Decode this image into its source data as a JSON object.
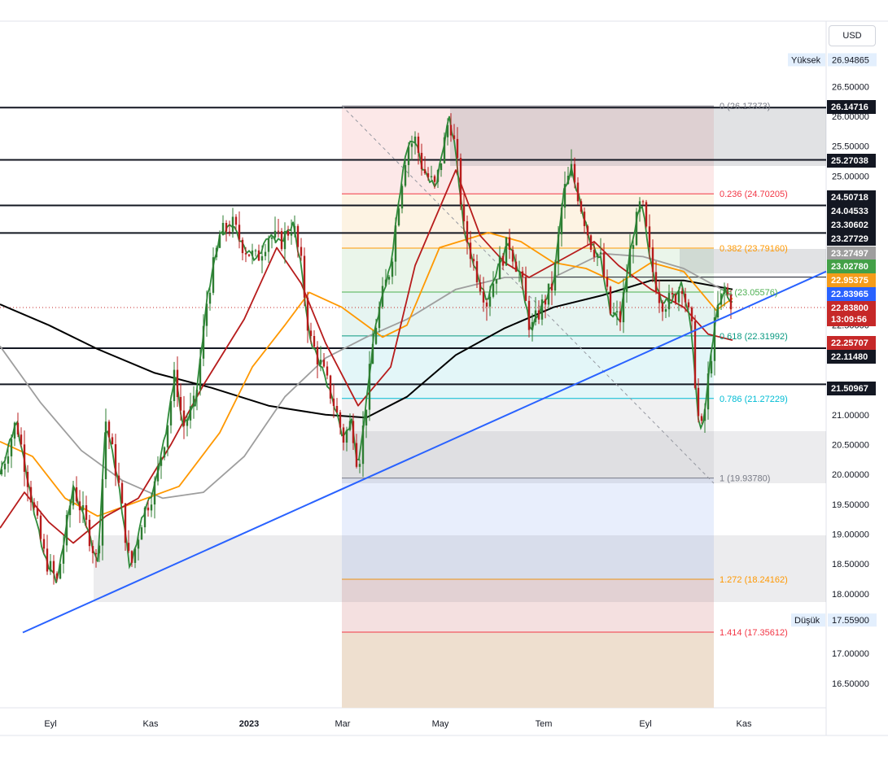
{
  "currency_button": "USD",
  "chart_data": {
    "type": "candlestick",
    "y_range": [
      16.0,
      27.1
    ],
    "y_ticks": [
      "26.50000",
      "26.00000",
      "25.50000",
      "25.00000",
      "22.50000",
      "21.00000",
      "20.50000",
      "20.00000",
      "19.50000",
      "19.00000",
      "18.50000",
      "18.00000",
      "17.00000",
      "16.50000"
    ],
    "x_labels": [
      "Eyl",
      "Kas",
      "2023",
      "Mar",
      "May",
      "Tem",
      "Eyl",
      "Kas"
    ],
    "high": {
      "label": "Yüksek",
      "value": "26.94865"
    },
    "low": {
      "label": "Düşük",
      "value": "17.55900"
    },
    "horizontal_levels": [
      {
        "value": "26.14716",
        "v": 26.147
      },
      {
        "value": "25.27038",
        "v": 25.27
      },
      {
        "value": "24.50718",
        "v": 24.507
      },
      {
        "value": "24.04533",
        "v": 24.045
      },
      {
        "value": "23.30602",
        "v": 23.306
      },
      {
        "value": "22.11480",
        "v": 22.115
      },
      {
        "value": "21.50967",
        "v": 21.51
      }
    ],
    "price_tags": [
      {
        "value": "23.27729",
        "v": 23.277,
        "color": "#131722"
      },
      {
        "value": "23.27497",
        "v": 23.275,
        "color": "#9e9e9e"
      },
      {
        "value": "23.02780",
        "v": 23.028,
        "color": "#43a047"
      },
      {
        "value": "22.95375",
        "v": 22.954,
        "color": "#f59c1a"
      },
      {
        "value": "22.83965",
        "v": 22.84,
        "color": "#2962ff"
      },
      {
        "value": "22.83800",
        "v": 22.838,
        "color": "#c62828"
      },
      {
        "value": "13:09:56",
        "v": 22.838,
        "color": "#c62828"
      },
      {
        "value": "22.25707",
        "v": 22.257,
        "color": "#c62828"
      }
    ],
    "fibonacci": [
      {
        "ratio": "0",
        "label": "0 (26.17373)",
        "v": 26.174,
        "color": "#787b86"
      },
      {
        "ratio": "0.236",
        "label": "0.236 (24.70205)",
        "v": 24.702,
        "color": "#f23645"
      },
      {
        "ratio": "0.382",
        "label": "0.382 (23.79160)",
        "v": 23.792,
        "color": "#ff9800"
      },
      {
        "ratio": "0.5",
        "label": "0.5 (23.05576)",
        "v": 23.056,
        "color": "#4caf50"
      },
      {
        "ratio": "0.618",
        "label": "0.618 (22.31992)",
        "v": 22.32,
        "color": "#089981"
      },
      {
        "ratio": "0.786",
        "label": "0.786 (21.27229)",
        "v": 21.272,
        "color": "#00bcd4"
      },
      {
        "ratio": "1",
        "label": "1 (19.93780)",
        "v": 19.938,
        "color": "#787b86"
      },
      {
        "ratio": "1.272",
        "label": "1.272 (18.24162)",
        "v": 18.242,
        "color": "#ff9800"
      },
      {
        "ratio": "1.414",
        "label": "1.414 (17.35612)",
        "v": 17.356,
        "color": "#f23645"
      }
    ],
    "moving_averages": [
      {
        "color": "#000000",
        "points": [
          [
            0,
            22.85
          ],
          [
            60,
            22.5
          ],
          [
            120,
            22.1
          ],
          [
            190,
            21.7
          ],
          [
            260,
            21.45
          ],
          [
            330,
            21.15
          ],
          [
            400,
            21.0
          ],
          [
            450,
            20.95
          ],
          [
            500,
            21.3
          ],
          [
            560,
            22.0
          ],
          [
            620,
            22.45
          ],
          [
            680,
            22.8
          ],
          [
            740,
            23.0
          ],
          [
            800,
            23.25
          ],
          [
            840,
            23.25
          ],
          [
            900,
            23.1
          ]
        ]
      },
      {
        "color": "#9e9e9e",
        "points": [
          [
            0,
            22.15
          ],
          [
            50,
            21.2
          ],
          [
            100,
            20.4
          ],
          [
            150,
            19.9
          ],
          [
            200,
            19.6
          ],
          [
            250,
            19.7
          ],
          [
            300,
            20.3
          ],
          [
            350,
            21.3
          ],
          [
            400,
            21.95
          ],
          [
            450,
            22.3
          ],
          [
            500,
            22.6
          ],
          [
            560,
            23.1
          ],
          [
            620,
            23.3
          ],
          [
            680,
            23.3
          ],
          [
            740,
            23.7
          ],
          [
            790,
            23.65
          ],
          [
            840,
            23.45
          ],
          [
            900,
            23.0
          ]
        ]
      },
      {
        "color": "#ff9800",
        "points": [
          [
            0,
            20.55
          ],
          [
            40,
            20.3
          ],
          [
            80,
            19.6
          ],
          [
            120,
            19.3
          ],
          [
            170,
            19.55
          ],
          [
            220,
            19.8
          ],
          [
            270,
            20.7
          ],
          [
            310,
            21.8
          ],
          [
            350,
            22.5
          ],
          [
            380,
            23.05
          ],
          [
            420,
            22.8
          ],
          [
            470,
            22.3
          ],
          [
            500,
            22.5
          ],
          [
            540,
            23.8
          ],
          [
            600,
            24.05
          ],
          [
            640,
            23.9
          ],
          [
            680,
            23.55
          ],
          [
            720,
            23.45
          ],
          [
            760,
            23.2
          ],
          [
            800,
            23.55
          ],
          [
            840,
            23.4
          ],
          [
            880,
            22.75
          ],
          [
            900,
            22.95
          ]
        ]
      },
      {
        "color": "#b71c1c",
        "points": [
          [
            0,
            19.1
          ],
          [
            30,
            19.7
          ],
          [
            60,
            19.2
          ],
          [
            90,
            18.85
          ],
          [
            130,
            19.3
          ],
          [
            170,
            19.6
          ],
          [
            210,
            20.5
          ],
          [
            250,
            21.5
          ],
          [
            300,
            22.6
          ],
          [
            340,
            23.8
          ],
          [
            370,
            23.2
          ],
          [
            400,
            22.2
          ],
          [
            440,
            21.15
          ],
          [
            480,
            21.8
          ],
          [
            510,
            23.5
          ],
          [
            560,
            25.1
          ],
          [
            590,
            24.0
          ],
          [
            620,
            23.55
          ],
          [
            650,
            23.3
          ],
          [
            690,
            23.6
          ],
          [
            730,
            23.9
          ],
          [
            760,
            23.5
          ],
          [
            800,
            23.1
          ],
          [
            840,
            22.8
          ],
          [
            870,
            22.35
          ],
          [
            900,
            22.25
          ]
        ]
      }
    ],
    "trendline": {
      "color": "#2962ff",
      "from": [
        28,
        17.35
      ],
      "to": [
        1015,
        23.4
      ]
    },
    "price_path": [
      [
        0,
        20.0
      ],
      [
        20,
        20.9
      ],
      [
        40,
        19.5
      ],
      [
        55,
        18.6
      ],
      [
        70,
        18.2
      ],
      [
        90,
        19.8
      ],
      [
        105,
        19.2
      ],
      [
        120,
        18.5
      ],
      [
        130,
        20.9
      ],
      [
        145,
        19.9
      ],
      [
        160,
        18.4
      ],
      [
        175,
        19.3
      ],
      [
        190,
        19.8
      ],
      [
        205,
        20.8
      ],
      [
        215,
        21.7
      ],
      [
        225,
        20.8
      ],
      [
        240,
        21.2
      ],
      [
        255,
        23.0
      ],
      [
        270,
        24.0
      ],
      [
        285,
        24.2
      ],
      [
        300,
        23.8
      ],
      [
        315,
        23.6
      ],
      [
        330,
        24.0
      ],
      [
        345,
        23.9
      ],
      [
        360,
        24.2
      ],
      [
        370,
        23.5
      ],
      [
        380,
        22.3
      ],
      [
        395,
        21.8
      ],
      [
        410,
        21.2
      ],
      [
        422,
        20.6
      ],
      [
        432,
        20.9
      ],
      [
        440,
        20.1
      ],
      [
        450,
        21.2
      ],
      [
        460,
        22.4
      ],
      [
        470,
        23.0
      ],
      [
        480,
        23.5
      ],
      [
        490,
        24.6
      ],
      [
        500,
        25.5
      ],
      [
        510,
        25.6
      ],
      [
        520,
        25.1
      ],
      [
        535,
        24.8
      ],
      [
        545,
        25.5
      ],
      [
        552,
        26.0
      ],
      [
        560,
        25.4
      ],
      [
        570,
        24.1
      ],
      [
        585,
        23.4
      ],
      [
        598,
        22.9
      ],
      [
        610,
        23.4
      ],
      [
        625,
        23.9
      ],
      [
        640,
        23.3
      ],
      [
        652,
        22.4
      ],
      [
        665,
        22.8
      ],
      [
        680,
        23.2
      ],
      [
        692,
        24.7
      ],
      [
        702,
        25.1
      ],
      [
        712,
        24.6
      ],
      [
        725,
        23.9
      ],
      [
        738,
        23.6
      ],
      [
        750,
        22.7
      ],
      [
        762,
        22.6
      ],
      [
        775,
        23.8
      ],
      [
        788,
        24.6
      ],
      [
        800,
        23.5
      ],
      [
        812,
        22.9
      ],
      [
        825,
        22.9
      ],
      [
        838,
        23.2
      ],
      [
        850,
        22.4
      ],
      [
        857,
        21.0
      ],
      [
        863,
        20.7
      ],
      [
        870,
        21.6
      ],
      [
        880,
        22.7
      ],
      [
        890,
        23.1
      ],
      [
        900,
        22.84
      ]
    ]
  }
}
